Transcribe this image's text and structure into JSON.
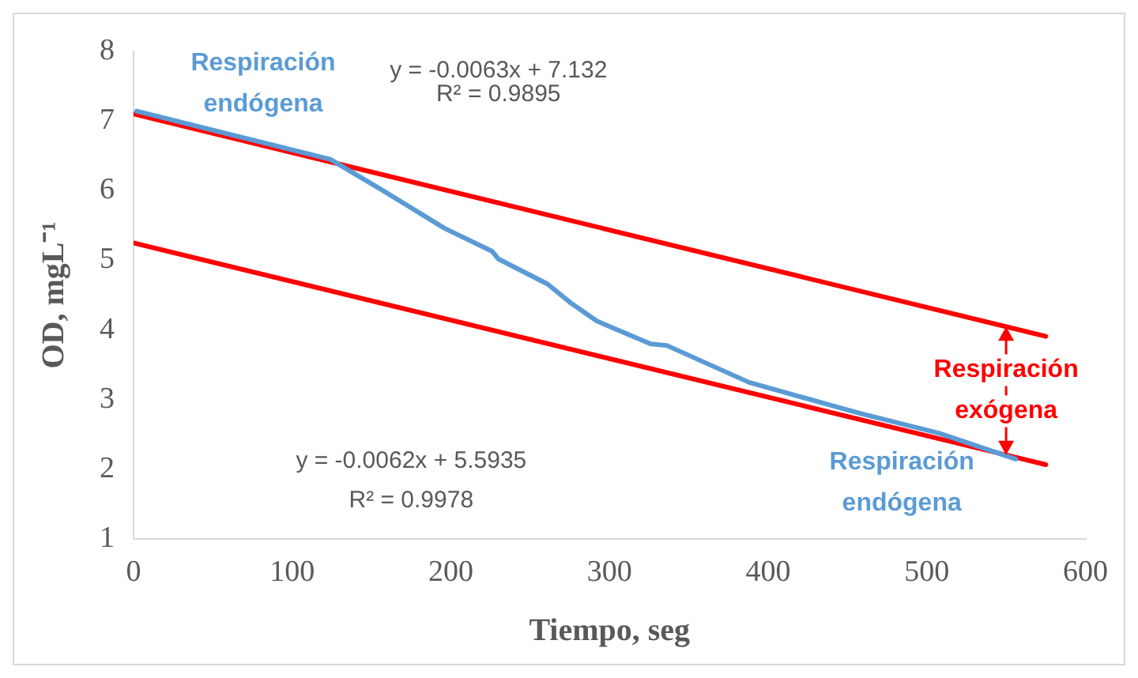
{
  "chart_data": {
    "type": "line",
    "xlabel": "Tiempo, seg",
    "ylabel": "OD, mgL⁻¹",
    "xlim": [
      0,
      600
    ],
    "xticks": [
      0,
      100,
      200,
      300,
      400,
      500,
      600
    ],
    "ylim": [
      1,
      8
    ],
    "yticks": [
      1,
      2,
      3,
      4,
      5,
      6,
      7,
      8
    ],
    "grid": false,
    "legend": false,
    "marker": "none",
    "series": [
      {
        "name": "Respiración endógena",
        "color": "#5b9bd5",
        "x": [
          2,
          124,
          158,
          196,
          226,
          230,
          261,
          275,
          292,
          326,
          336,
          388,
          457,
          508,
          556
        ],
        "values": [
          7.14,
          6.45,
          5.99,
          5.46,
          5.13,
          5.02,
          4.66,
          4.4,
          4.13,
          3.8,
          3.78,
          3.25,
          2.81,
          2.52,
          2.15
        ]
      },
      {
        "type": "line",
        "color": "#ff0000",
        "x": [
          0,
          575
        ],
        "values": [
          7.1,
          3.91
        ]
      },
      {
        "type": "line",
        "color": "#ff0000",
        "x": [
          0,
          575
        ],
        "values": [
          5.25,
          2.07
        ]
      }
    ],
    "annotations": [
      "y = -0.0063x + 7.132",
      "R² = 0.9895",
      "y = -0.0062x + 5.5935",
      "R² = 0.9978",
      {
        "text": "Respiración exógena",
        "x": 550,
        "y": 4.05
      }
    ]
  }
}
